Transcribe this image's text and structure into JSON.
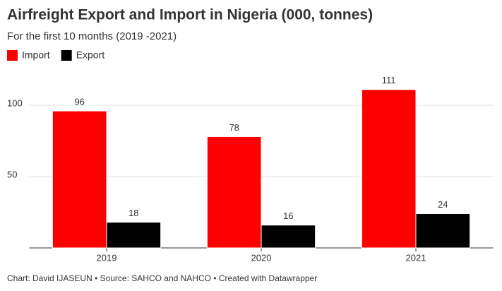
{
  "chart_data": {
    "type": "bar",
    "title": "Airfreight Export and Import in Nigeria (000, tonnes)",
    "subtitle": "For the first 10 months (2019 -2021)",
    "categories": [
      "2019",
      "2020",
      "2021"
    ],
    "series": [
      {
        "name": "Import",
        "color": "#ff0000",
        "values": [
          96,
          78,
          111
        ]
      },
      {
        "name": "Export",
        "color": "#000000",
        "values": [
          18,
          16,
          24
        ]
      }
    ],
    "ylim": [
      0,
      120
    ],
    "yticks": [
      50,
      100
    ],
    "grid": true,
    "legend": "top-left",
    "source": "Chart: David IJASEUN • Source: SAHCO and NAHCO • Created with Datawrapper"
  }
}
